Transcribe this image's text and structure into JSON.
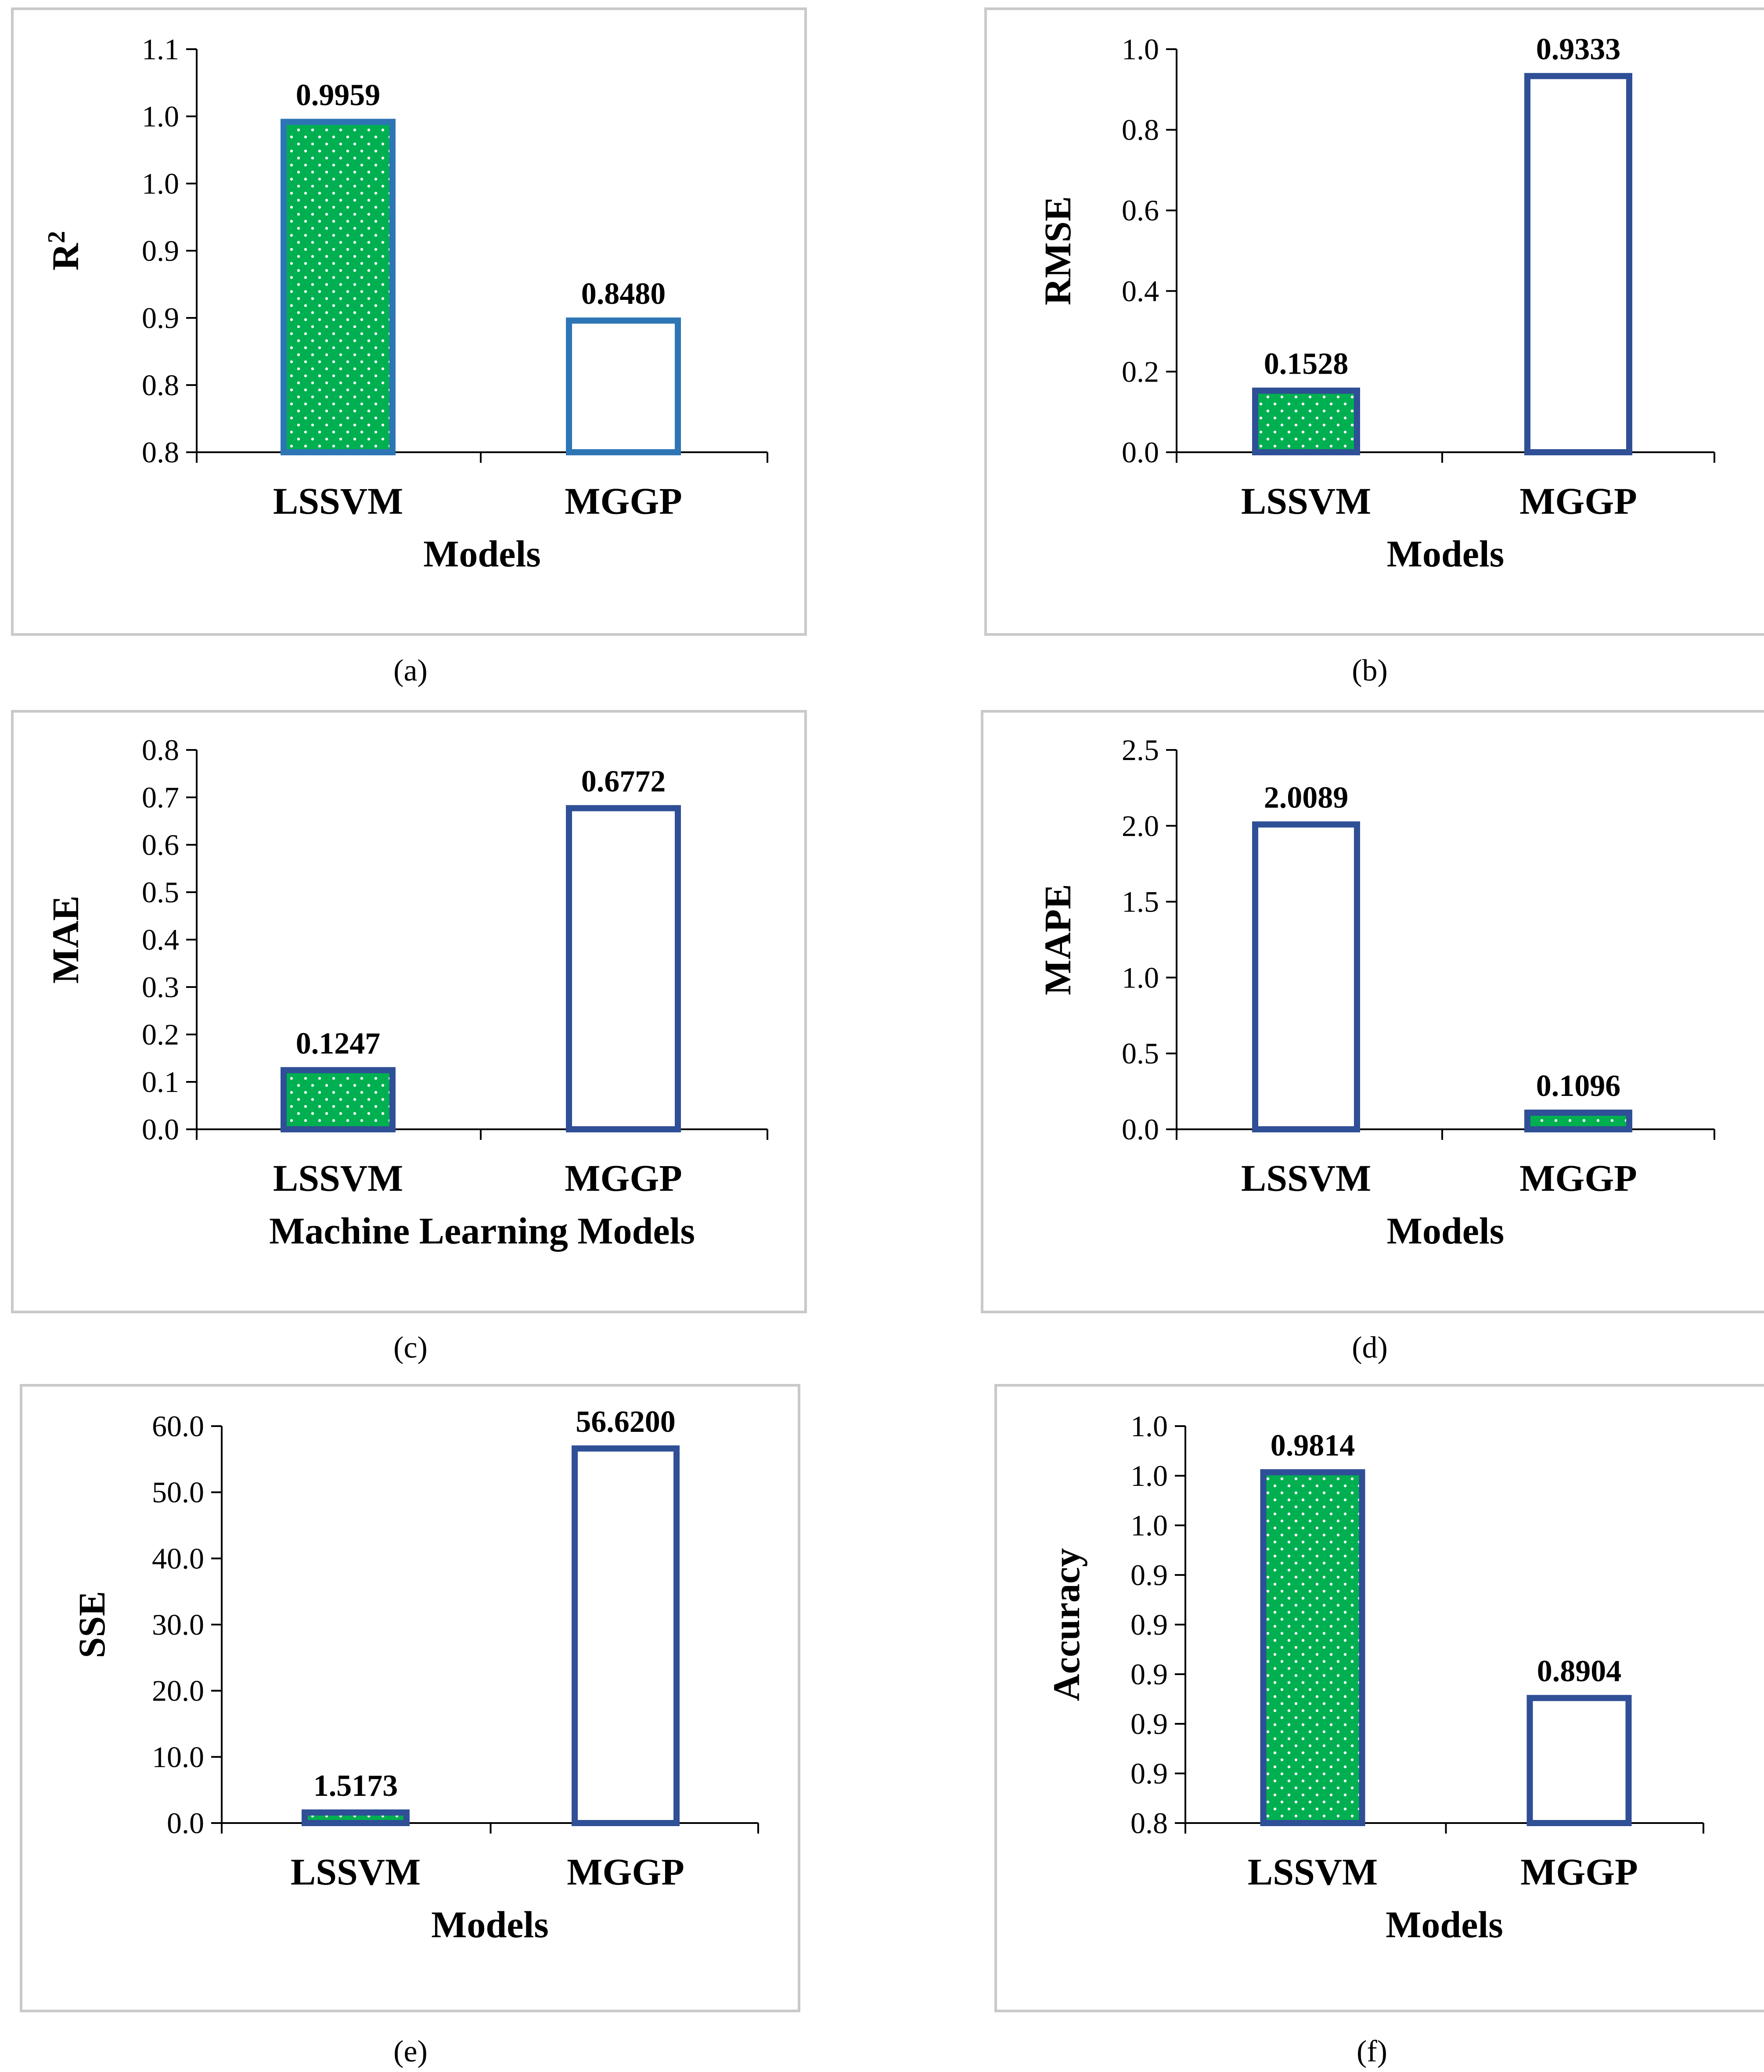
{
  "colors": {
    "green": "#00b050",
    "dot": "#ffffff",
    "blue": "#2f4f96",
    "blue_light": "#2e75b6",
    "frame": "#c9c9c9"
  },
  "chart_data": [
    {
      "id": "a",
      "caption": "(a)",
      "type": "bar",
      "ylabel": "R",
      "ylabel_sup": "2",
      "xlabel": "Models",
      "categories": [
        "LSSVM",
        "MGGP"
      ],
      "series": [
        {
          "name": "R²",
          "values": [
            0.9959,
            0.848
          ]
        }
      ],
      "value_labels": [
        "0.9959",
        "0.8480"
      ],
      "fills": [
        "dotted",
        "none"
      ],
      "outline": "blue_light",
      "ylim": [
        0.75,
        1.05
      ],
      "ticks": [
        0.75,
        0.8,
        0.85,
        0.9,
        0.95,
        1.0,
        1.05
      ],
      "tick_labels": [
        "0.8",
        "0.8",
        "0.9",
        "0.9",
        "1.0",
        "1.0",
        "1.1"
      ]
    },
    {
      "id": "b",
      "caption": "(b)",
      "type": "bar",
      "ylabel": "RMSE",
      "xlabel": "Models",
      "categories": [
        "LSSVM",
        "MGGP"
      ],
      "series": [
        {
          "name": "RMSE",
          "values": [
            0.1528,
            0.9333
          ]
        }
      ],
      "value_labels": [
        "0.1528",
        "0.9333"
      ],
      "fills": [
        "dotted",
        "none"
      ],
      "outline": "blue",
      "ylim": [
        0,
        1.0
      ],
      "ticks": [
        0,
        0.2,
        0.4,
        0.6,
        0.8,
        1.0
      ],
      "tick_labels": [
        "0.0",
        "0.2",
        "0.4",
        "0.6",
        "0.8",
        "1.0"
      ]
    },
    {
      "id": "c",
      "caption": "(c)",
      "type": "bar",
      "ylabel": "MAE",
      "xlabel": "Machine Learning Models",
      "categories": [
        "LSSVM",
        "MGGP"
      ],
      "series": [
        {
          "name": "MAE",
          "values": [
            0.1247,
            0.6772
          ]
        }
      ],
      "value_labels": [
        "0.1247",
        "0.6772"
      ],
      "fills": [
        "dotted",
        "none"
      ],
      "outline": "blue",
      "ylim": [
        0,
        0.8
      ],
      "ticks": [
        0,
        0.1,
        0.2,
        0.3,
        0.4,
        0.5,
        0.6,
        0.7,
        0.8
      ],
      "tick_labels": [
        "0.0",
        "0.1",
        "0.2",
        "0.3",
        "0.4",
        "0.5",
        "0.6",
        "0.7",
        "0.8"
      ]
    },
    {
      "id": "d",
      "caption": "(d)",
      "type": "bar",
      "ylabel": "MAPE",
      "xlabel": "Models",
      "categories": [
        "LSSVM",
        "MGGP"
      ],
      "series": [
        {
          "name": "MAPE",
          "values": [
            2.0089,
            0.1096
          ]
        }
      ],
      "value_labels": [
        "2.0089",
        "0.1096"
      ],
      "fills": [
        "none",
        "dotted"
      ],
      "outline": "blue",
      "ylim": [
        0,
        2.5
      ],
      "ticks": [
        0,
        0.5,
        1.0,
        1.5,
        2.0,
        2.5
      ],
      "tick_labels": [
        "0.0",
        "0.5",
        "1.0",
        "1.5",
        "2.0",
        "2.5"
      ]
    },
    {
      "id": "e",
      "caption": "(e)",
      "type": "bar",
      "ylabel": "SSE",
      "xlabel": "Models",
      "categories": [
        "LSSVM",
        "MGGP"
      ],
      "series": [
        {
          "name": "SSE",
          "values": [
            1.5173,
            56.62
          ]
        }
      ],
      "value_labels": [
        "1.5173",
        "56.6200"
      ],
      "fills": [
        "dotted",
        "none"
      ],
      "outline": "blue",
      "ylim": [
        0,
        60
      ],
      "ticks": [
        0,
        10,
        20,
        30,
        40,
        50,
        60
      ],
      "tick_labels": [
        "0.0",
        "10.0",
        "20.0",
        "30.0",
        "40.0",
        "50.0",
        "60.0"
      ]
    },
    {
      "id": "f",
      "caption": "(f)",
      "type": "bar",
      "ylabel": "Accuracy",
      "xlabel": "Models",
      "categories": [
        "LSSVM",
        "MGGP"
      ],
      "series": [
        {
          "name": "Accuracy",
          "values": [
            0.9814,
            0.8904
          ]
        }
      ],
      "value_labels": [
        "0.9814",
        "0.8904"
      ],
      "fills": [
        "dotted",
        "none"
      ],
      "outline": "blue",
      "ylim": [
        0.84,
        1.0
      ],
      "ticks": [
        0.84,
        0.86,
        0.88,
        0.9,
        0.92,
        0.94,
        0.96,
        0.98,
        1.0
      ],
      "tick_labels": [
        "0.8",
        "0.9",
        "0.9",
        "0.9",
        "0.9",
        "0.9",
        "1.0",
        "1.0",
        "1.0"
      ]
    }
  ]
}
